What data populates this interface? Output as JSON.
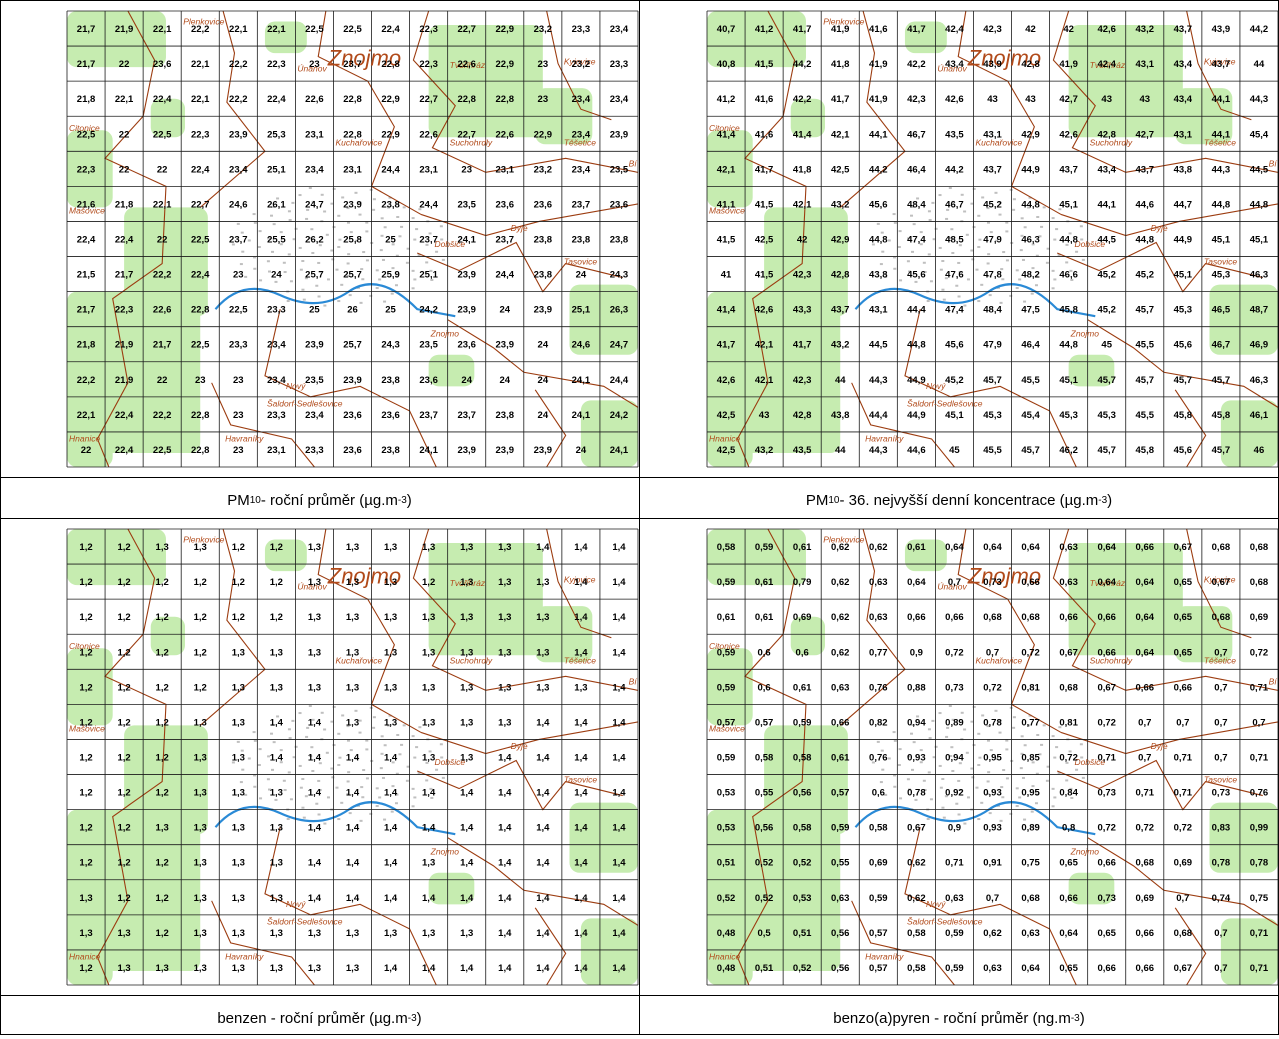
{
  "colors": {
    "border": "#000000",
    "grid": "#1a1a1a",
    "green": "#c6ecb0",
    "boundary": "#9c3c10",
    "river": "#2a8ad6",
    "urban": "#8a8a8a",
    "label": "#b14a1a"
  },
  "city_label": "Znojmo",
  "towns": [
    "Plenkovice",
    "Únanov",
    "Tvořihráz",
    "Kyjovice",
    "Citonice",
    "Kuchařovice",
    "Suchohrdly",
    "Těšetice",
    "Mašovice",
    "Dyje",
    "Dobšice",
    "Tasovice",
    "Znojmo",
    "Nový",
    "Šaldorf-Sedlešovice",
    "Havraníky",
    "Hnanice",
    "Bí"
  ],
  "panels": [
    {
      "caption": {
        "pre": "PM",
        "sub": "10",
        "post": " - roční průměr (µg.m",
        "sup": "-3",
        "end": ")"
      },
      "grid": [
        [
          "21,7",
          "21,9",
          "22,1",
          "22,2",
          "22,1",
          "22,1",
          "22,5",
          "22,5",
          "22,4",
          "22,3",
          "22,7",
          "22,9",
          "23,2",
          "23,3",
          "23,4"
        ],
        [
          "21,7",
          "22",
          "23,6",
          "22,1",
          "22,2",
          "22,3",
          "23",
          "23,7",
          "22,8",
          "22,3",
          "22,6",
          "22,9",
          "23",
          "23,2",
          "23,3"
        ],
        [
          "21,8",
          "22,1",
          "22,4",
          "22,1",
          "22,2",
          "22,4",
          "22,6",
          "22,8",
          "22,9",
          "22,7",
          "22,8",
          "22,8",
          "23",
          "23,4",
          "23,4"
        ],
        [
          "22,5",
          "22",
          "22,5",
          "22,3",
          "23,9",
          "25,3",
          "23,1",
          "22,8",
          "22,9",
          "22,6",
          "22,7",
          "22,6",
          "22,9",
          "23,4",
          "23,9"
        ],
        [
          "22,3",
          "22",
          "22",
          "22,4",
          "23,4",
          "25,1",
          "23,4",
          "23,1",
          "24,4",
          "23,1",
          "23",
          "23,1",
          "23,2",
          "23,4",
          "23,5"
        ],
        [
          "21,6",
          "21,8",
          "22,1",
          "22,7",
          "24,6",
          "26,1",
          "24,7",
          "23,9",
          "23,8",
          "24,4",
          "23,5",
          "23,6",
          "23,6",
          "23,7",
          "23,6"
        ],
        [
          "22,4",
          "22,4",
          "22",
          "22,5",
          "23,7",
          "25,5",
          "26,2",
          "25,8",
          "25",
          "23,7",
          "24,1",
          "23,7",
          "23,8",
          "23,8",
          "23,8"
        ],
        [
          "21,5",
          "21,7",
          "22,2",
          "22,4",
          "23",
          "24",
          "25,7",
          "25,7",
          "25,9",
          "25,1",
          "23,9",
          "24,4",
          "23,8",
          "24",
          "24,3"
        ],
        [
          "21,7",
          "22,3",
          "22,6",
          "22,8",
          "22,5",
          "23,3",
          "25",
          "26",
          "25",
          "24,2",
          "23,9",
          "24",
          "23,9",
          "25,1",
          "26,3"
        ],
        [
          "21,8",
          "21,9",
          "21,7",
          "22,5",
          "23,3",
          "23,4",
          "23,9",
          "25,7",
          "24,3",
          "23,5",
          "23,6",
          "23,9",
          "24",
          "24,6",
          "24,7"
        ],
        [
          "22,2",
          "21,9",
          "22",
          "23",
          "23",
          "23,4",
          "23,5",
          "23,9",
          "23,8",
          "23,6",
          "24",
          "24",
          "24",
          "24,1",
          "24,4"
        ],
        [
          "22,1",
          "22,4",
          "22,2",
          "22,8",
          "23",
          "23,3",
          "23,4",
          "23,6",
          "23,6",
          "23,7",
          "23,7",
          "23,8",
          "24",
          "24,1",
          "24,2"
        ],
        [
          "22",
          "22,4",
          "22,5",
          "22,8",
          "23",
          "23,1",
          "23,3",
          "23,6",
          "23,8",
          "24,1",
          "23,9",
          "23,9",
          "23,9",
          "24",
          "24,1"
        ]
      ]
    },
    {
      "caption": {
        "pre": "PM",
        "sub": "10",
        "post": " - 36. nejvyšší denní koncentrace (µg.m",
        "sup": "-3",
        "end": ")"
      },
      "grid": [
        [
          "40,7",
          "41,2",
          "41,7",
          "41,9",
          "41,6",
          "41,7",
          "42,4",
          "42,3",
          "42",
          "42",
          "42,6",
          "43,2",
          "43,7",
          "43,9",
          "44,2"
        ],
        [
          "40,8",
          "41,5",
          "44,2",
          "41,8",
          "41,9",
          "42,2",
          "43,4",
          "43,9",
          "42,8",
          "41,9",
          "42,4",
          "43,1",
          "43,4",
          "43,7",
          "44"
        ],
        [
          "41,2",
          "41,6",
          "42,2",
          "41,7",
          "41,9",
          "42,3",
          "42,6",
          "43",
          "43",
          "42,7",
          "43",
          "43",
          "43,4",
          "44,1",
          "44,3"
        ],
        [
          "41,4",
          "41,6",
          "41,4",
          "42,1",
          "44,1",
          "46,7",
          "43,5",
          "43,1",
          "42,9",
          "42,6",
          "42,8",
          "42,7",
          "43,1",
          "44,1",
          "45,4"
        ],
        [
          "42,1",
          "41,7",
          "41,8",
          "42,5",
          "44,2",
          "46,4",
          "44,2",
          "43,7",
          "44,9",
          "43,7",
          "43,4",
          "43,7",
          "43,8",
          "44,3",
          "44,5"
        ],
        [
          "41,1",
          "41,5",
          "42,1",
          "43,2",
          "45,6",
          "48,4",
          "46,7",
          "45,2",
          "44,8",
          "45,1",
          "44,1",
          "44,6",
          "44,7",
          "44,8",
          "44,8"
        ],
        [
          "41,5",
          "42,5",
          "42",
          "42,9",
          "44,8",
          "47,4",
          "48,5",
          "47,9",
          "46,3",
          "44,8",
          "44,5",
          "44,8",
          "44,9",
          "45,1",
          "45,1"
        ],
        [
          "41",
          "41,5",
          "42,3",
          "42,8",
          "43,8",
          "45,6",
          "47,6",
          "47,8",
          "48,2",
          "46,6",
          "45,2",
          "45,2",
          "45,1",
          "45,3",
          "46,3"
        ],
        [
          "41,4",
          "42,6",
          "43,3",
          "43,7",
          "43,1",
          "44,4",
          "47,4",
          "48,4",
          "47,5",
          "45,8",
          "45,2",
          "45,7",
          "45,3",
          "46,5",
          "48,7"
        ],
        [
          "41,7",
          "42,1",
          "41,7",
          "43,2",
          "44,5",
          "44,8",
          "45,6",
          "47,9",
          "46,4",
          "44,8",
          "45",
          "45,5",
          "45,6",
          "46,7",
          "46,9"
        ],
        [
          "42,6",
          "42,1",
          "42,3",
          "44",
          "44,3",
          "44,9",
          "45,2",
          "45,7",
          "45,5",
          "45,1",
          "45,7",
          "45,7",
          "45,7",
          "45,7",
          "46,3"
        ],
        [
          "42,5",
          "43",
          "42,8",
          "43,8",
          "44,4",
          "44,9",
          "45,1",
          "45,3",
          "45,4",
          "45,3",
          "45,3",
          "45,5",
          "45,8",
          "45,8",
          "46,1"
        ],
        [
          "42,5",
          "43,2",
          "43,5",
          "44",
          "44,3",
          "44,6",
          "45",
          "45,5",
          "45,7",
          "46,2",
          "45,7",
          "45,8",
          "45,6",
          "45,7",
          "46"
        ]
      ]
    },
    {
      "caption": {
        "pre": "benzen - roční průměr (µg.m",
        "sub": "",
        "post": "",
        "sup": "-3",
        "end": ")"
      },
      "grid": [
        [
          "1,2",
          "1,2",
          "1,3",
          "1,3",
          "1,2",
          "1,2",
          "1,3",
          "1,3",
          "1,3",
          "1,3",
          "1,3",
          "1,3",
          "1,4",
          "1,4",
          "1,4"
        ],
        [
          "1,2",
          "1,2",
          "1,2",
          "1,2",
          "1,2",
          "1,2",
          "1,3",
          "1,3",
          "1,3",
          "1,2",
          "1,3",
          "1,3",
          "1,3",
          "1,4",
          "1,4"
        ],
        [
          "1,2",
          "1,2",
          "1,2",
          "1,2",
          "1,2",
          "1,2",
          "1,3",
          "1,3",
          "1,3",
          "1,3",
          "1,3",
          "1,3",
          "1,3",
          "1,4",
          "1,4"
        ],
        [
          "1,2",
          "1,2",
          "1,2",
          "1,2",
          "1,3",
          "1,3",
          "1,3",
          "1,3",
          "1,3",
          "1,3",
          "1,3",
          "1,3",
          "1,3",
          "1,4",
          "1,4"
        ],
        [
          "1,2",
          "1,2",
          "1,2",
          "1,2",
          "1,3",
          "1,3",
          "1,3",
          "1,3",
          "1,3",
          "1,3",
          "1,3",
          "1,3",
          "1,3",
          "1,3",
          "1,4"
        ],
        [
          "1,2",
          "1,2",
          "1,2",
          "1,3",
          "1,3",
          "1,4",
          "1,4",
          "1,3",
          "1,3",
          "1,3",
          "1,3",
          "1,3",
          "1,4",
          "1,4",
          "1,4"
        ],
        [
          "1,2",
          "1,2",
          "1,2",
          "1,3",
          "1,3",
          "1,4",
          "1,4",
          "1,4",
          "1,4",
          "1,3",
          "1,3",
          "1,4",
          "1,4",
          "1,4",
          "1,4"
        ],
        [
          "1,2",
          "1,2",
          "1,2",
          "1,3",
          "1,3",
          "1,3",
          "1,4",
          "1,4",
          "1,4",
          "1,4",
          "1,4",
          "1,4",
          "1,4",
          "1,4",
          "1,4"
        ],
        [
          "1,2",
          "1,2",
          "1,3",
          "1,3",
          "1,3",
          "1,3",
          "1,4",
          "1,4",
          "1,4",
          "1,4",
          "1,4",
          "1,4",
          "1,4",
          "1,4",
          "1,4"
        ],
        [
          "1,2",
          "1,2",
          "1,2",
          "1,3",
          "1,3",
          "1,3",
          "1,4",
          "1,4",
          "1,4",
          "1,3",
          "1,4",
          "1,4",
          "1,4",
          "1,4",
          "1,4"
        ],
        [
          "1,3",
          "1,2",
          "1,2",
          "1,3",
          "1,3",
          "1,3",
          "1,4",
          "1,4",
          "1,4",
          "1,4",
          "1,4",
          "1,4",
          "1,4",
          "1,4",
          "1,4"
        ],
        [
          "1,3",
          "1,3",
          "1,2",
          "1,3",
          "1,3",
          "1,3",
          "1,3",
          "1,3",
          "1,3",
          "1,3",
          "1,3",
          "1,4",
          "1,4",
          "1,4",
          "1,4"
        ],
        [
          "1,2",
          "1,3",
          "1,3",
          "1,3",
          "1,3",
          "1,3",
          "1,3",
          "1,3",
          "1,4",
          "1,4",
          "1,4",
          "1,4",
          "1,4",
          "1,4",
          "1,4"
        ]
      ]
    },
    {
      "caption": {
        "pre": "benzo(a)pyren - roční průměr (ng.m",
        "sub": "",
        "post": "",
        "sup": "-3",
        "end": ")"
      },
      "grid": [
        [
          "0,58",
          "0,59",
          "0,61",
          "0,62",
          "0,62",
          "0,61",
          "0,64",
          "0,64",
          "0,64",
          "0,63",
          "0,64",
          "0,66",
          "0,67",
          "0,68",
          "0,68"
        ],
        [
          "0,59",
          "0,61",
          "0,79",
          "0,62",
          "0,63",
          "0,64",
          "0,7",
          "0,73",
          "0,66",
          "0,63",
          "0,64",
          "0,64",
          "0,65",
          "0,67",
          "0,68"
        ],
        [
          "0,61",
          "0,61",
          "0,69",
          "0,62",
          "0,63",
          "0,66",
          "0,66",
          "0,68",
          "0,68",
          "0,66",
          "0,66",
          "0,64",
          "0,65",
          "0,68",
          "0,69"
        ],
        [
          "0,59",
          "0,6",
          "0,6",
          "0,62",
          "0,77",
          "0,9",
          "0,72",
          "0,7",
          "0,72",
          "0,67",
          "0,66",
          "0,64",
          "0,65",
          "0,7",
          "0,72"
        ],
        [
          "0,59",
          "0,6",
          "0,61",
          "0,63",
          "0,76",
          "0,88",
          "0,73",
          "0,72",
          "0,81",
          "0,68",
          "0,67",
          "0,66",
          "0,66",
          "0,7",
          "0,71"
        ],
        [
          "0,57",
          "0,57",
          "0,59",
          "0,66",
          "0,82",
          "0,94",
          "0,89",
          "0,78",
          "0,77",
          "0,81",
          "0,72",
          "0,7",
          "0,7",
          "0,7",
          "0,7"
        ],
        [
          "0,59",
          "0,58",
          "0,58",
          "0,61",
          "0,76",
          "0,93",
          "0,94",
          "0,95",
          "0,85",
          "0,72",
          "0,71",
          "0,7",
          "0,71",
          "0,7",
          "0,71"
        ],
        [
          "0,53",
          "0,55",
          "0,56",
          "0,57",
          "0,6",
          "0,78",
          "0,92",
          "0,93",
          "0,95",
          "0,84",
          "0,73",
          "0,71",
          "0,71",
          "0,73",
          "0,76"
        ],
        [
          "0,53",
          "0,56",
          "0,58",
          "0,59",
          "0,58",
          "0,67",
          "0,9",
          "0,93",
          "0,89",
          "0,8",
          "0,72",
          "0,72",
          "0,72",
          "0,83",
          "0,99"
        ],
        [
          "0,51",
          "0,52",
          "0,52",
          "0,55",
          "0,69",
          "0,62",
          "0,71",
          "0,91",
          "0,75",
          "0,65",
          "0,66",
          "0,68",
          "0,69",
          "0,78",
          "0,78"
        ],
        [
          "0,52",
          "0,52",
          "0,53",
          "0,63",
          "0,59",
          "0,62",
          "0,63",
          "0,7",
          "0,68",
          "0,66",
          "0,73",
          "0,69",
          "0,7",
          "0,74",
          "0,75"
        ],
        [
          "0,48",
          "0,5",
          "0,51",
          "0,56",
          "0,57",
          "0,58",
          "0,59",
          "0,62",
          "0,63",
          "0,64",
          "0,65",
          "0,66",
          "0,68",
          "0,7",
          "0,71"
        ],
        [
          "0,48",
          "0,51",
          "0,52",
          "0,56",
          "0,57",
          "0,58",
          "0,59",
          "0,63",
          "0,64",
          "0,65",
          "0,66",
          "0,66",
          "0,67",
          "0,7",
          "0,71"
        ]
      ]
    }
  ]
}
